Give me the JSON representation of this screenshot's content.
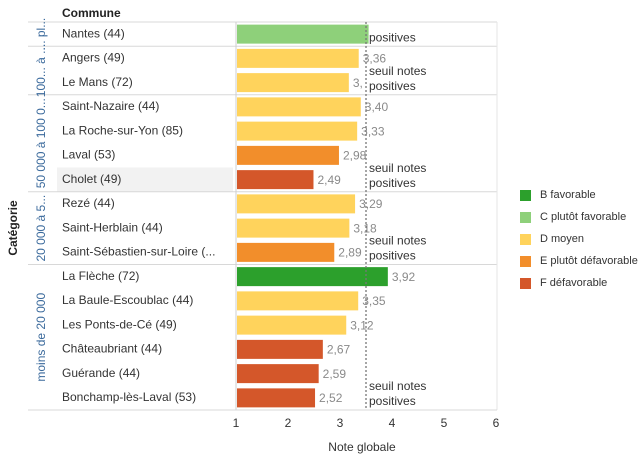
{
  "chart_data": {
    "type": "bar",
    "orientation": "horizontal",
    "column_header": "Commune",
    "ylabel": "Catégorie",
    "xlabel": "Note globale",
    "xlim": [
      1,
      6
    ],
    "xticks": [
      "1",
      "2",
      "3",
      "4",
      "5",
      "6"
    ],
    "reference_line": {
      "value": 3.5,
      "label": "seuil notes positives"
    },
    "groups": [
      {
        "label": "... pl...",
        "rows": [
          {
            "commune": "Nantes (44)",
            "value": 3.55,
            "value_label": "",
            "category": "C"
          }
        ]
      },
      {
        "label": "100... à ...",
        "rows": [
          {
            "commune": "Angers (49)",
            "value": 3.36,
            "value_label": "3,36",
            "category": "D"
          },
          {
            "commune": "Le Mans (72)",
            "value": 3.17,
            "value_label": "3,",
            "category": "D"
          }
        ]
      },
      {
        "label": "50 000 à 100 0...",
        "rows": [
          {
            "commune": "Saint-Nazaire (44)",
            "value": 3.4,
            "value_label": "3,40",
            "category": "D"
          },
          {
            "commune": "La Roche-sur-Yon (85)",
            "value": 3.33,
            "value_label": "3,33",
            "category": "D"
          },
          {
            "commune": "Laval (53)",
            "value": 2.98,
            "value_label": "2,98",
            "category": "E"
          },
          {
            "commune": "Cholet (49)",
            "value": 2.49,
            "value_label": "2,49",
            "category": "F",
            "highlighted": true
          }
        ]
      },
      {
        "label": "20 000 à 5...",
        "rows": [
          {
            "commune": "Rezé (44)",
            "value": 3.29,
            "value_label": "3,29",
            "category": "D"
          },
          {
            "commune": "Saint-Herblain (44)",
            "value": 3.18,
            "value_label": "3,18",
            "category": "D"
          },
          {
            "commune": "Saint-Sébastien-sur-Loire (...",
            "value": 2.89,
            "value_label": "2,89",
            "category": "E"
          }
        ]
      },
      {
        "label": "moins de 20 000",
        "rows": [
          {
            "commune": "La Flèche (72)",
            "value": 3.92,
            "value_label": "3,92",
            "category": "B"
          },
          {
            "commune": "La Baule-Escoublac (44)",
            "value": 3.35,
            "value_label": "3,35",
            "category": "D"
          },
          {
            "commune": "Les Ponts-de-Cé (49)",
            "value": 3.12,
            "value_label": "3,12",
            "category": "D"
          },
          {
            "commune": "Châteaubriant (44)",
            "value": 2.67,
            "value_label": "2,67",
            "category": "F"
          },
          {
            "commune": "Guérande (44)",
            "value": 2.59,
            "value_label": "2,59",
            "category": "F"
          },
          {
            "commune": "Bonchamp-lès-Laval (53)",
            "value": 2.52,
            "value_label": "2,52",
            "category": "F"
          }
        ]
      }
    ],
    "threshold_labels": [
      {
        "after_row": "Nantes (44)",
        "text": "positives"
      },
      {
        "after_row": "Le Mans (72)",
        "text": "seuil notes|positives"
      },
      {
        "after_row": "Cholet (49)",
        "text": "seuil notes|positives"
      },
      {
        "after_row": "Saint-Sébastien-sur-Loire (...",
        "text": "seuil notes|positives"
      },
      {
        "after_row": "Bonchamp-lès-Laval (53)",
        "text": "seuil notes|positives"
      }
    ],
    "legend": [
      {
        "key": "B",
        "label": "B favorable",
        "color": "#2ca02c"
      },
      {
        "key": "C",
        "label": "C plutôt favorable",
        "color": "#8ed07a"
      },
      {
        "key": "D",
        "label": "D moyen",
        "color": "#ffd35c"
      },
      {
        "key": "E",
        "label": "E plutôt défavorable",
        "color": "#f28e2b"
      },
      {
        "key": "F",
        "label": "F défavorable",
        "color": "#d4572a"
      }
    ]
  }
}
